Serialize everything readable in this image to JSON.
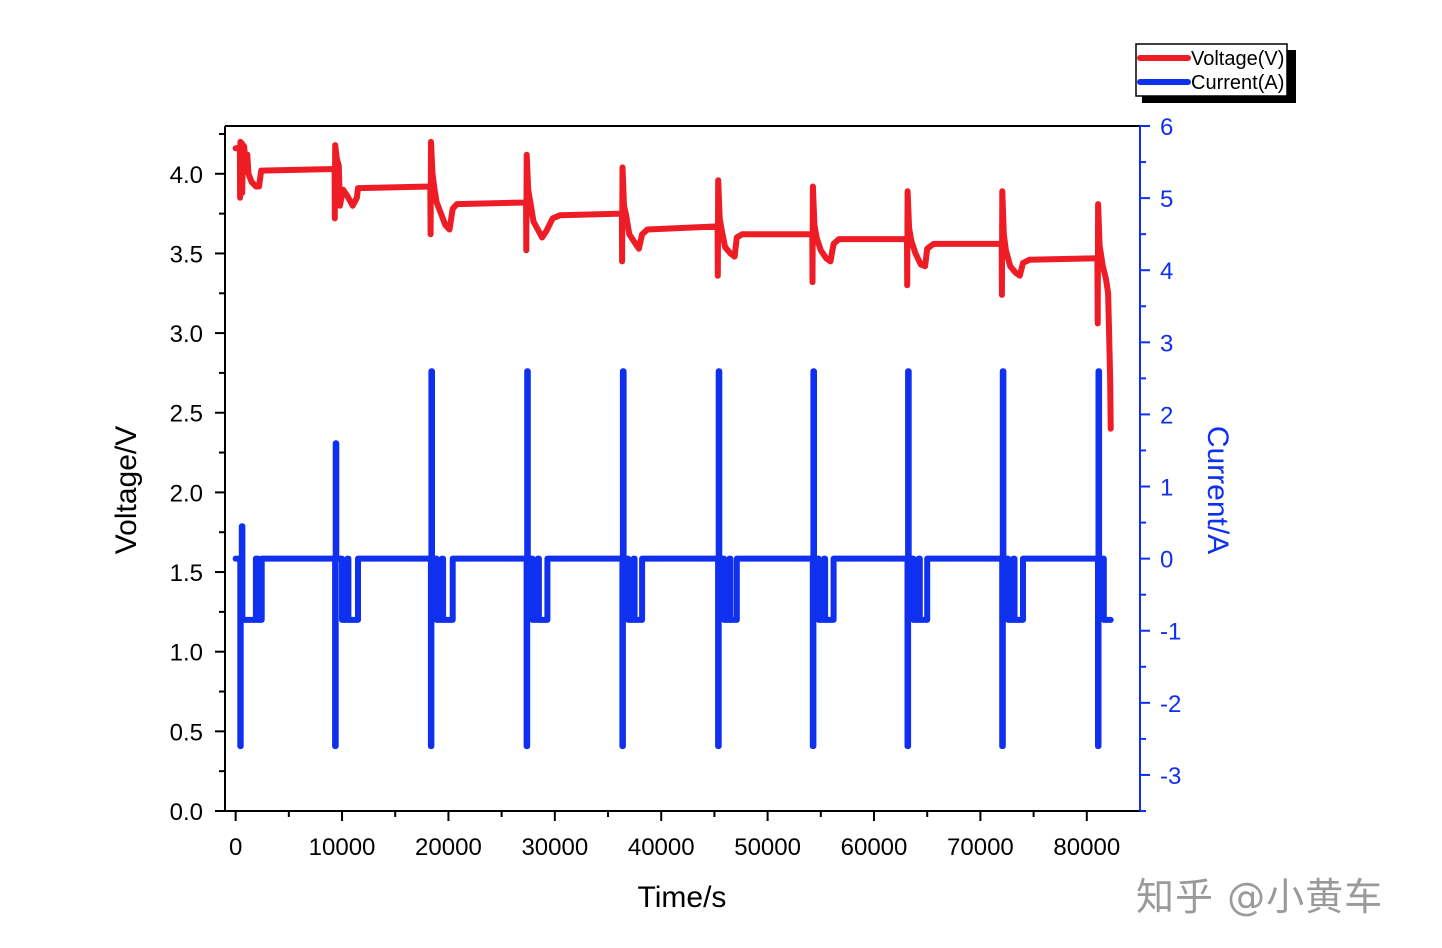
{
  "chart_data": {
    "type": "line",
    "xlabel": "Time/s",
    "ylabel": "Voltage/V",
    "y2label": "Current/A",
    "xlim": [
      -1000,
      85000
    ],
    "ylim": [
      0,
      4.3
    ],
    "y2lim": [
      -3.5,
      6
    ],
    "x_ticks": [
      0,
      10000,
      20000,
      30000,
      40000,
      50000,
      60000,
      70000,
      80000
    ],
    "x_tick_labels": [
      "0",
      "10000",
      "20000",
      "30000",
      "40000",
      "50000",
      "60000",
      "70000",
      "80000"
    ],
    "y_ticks": [
      0,
      0.5,
      1,
      1.5,
      2,
      2.5,
      3,
      3.5,
      4
    ],
    "y_tick_labels": [
      "0.0",
      "0.5",
      "1.0",
      "1.5",
      "2.0",
      "2.5",
      "3.0",
      "3.5",
      "4.0"
    ],
    "y2_ticks": [
      -3,
      -2,
      -1,
      0,
      1,
      2,
      3,
      4,
      5,
      6
    ],
    "y2_tick_labels": [
      "-3",
      "-2",
      "-1",
      "0",
      "1",
      "2",
      "3",
      "4",
      "5",
      "6"
    ],
    "legend_position": "top-right",
    "grid": false,
    "series": [
      {
        "name": "Voltage(V)",
        "axis": "left",
        "color": "#ee1c25",
        "points": [
          [
            0,
            4.16
          ],
          [
            400,
            4.16
          ],
          [
            420,
            3.85
          ],
          [
            450,
            4.2
          ],
          [
            600,
            4.19
          ],
          [
            620,
            3.88
          ],
          [
            700,
            4.18
          ],
          [
            800,
            4.17
          ],
          [
            950,
            4.05
          ],
          [
            1100,
            4.12
          ],
          [
            1200,
            4.0
          ],
          [
            1500,
            3.95
          ],
          [
            1900,
            3.92
          ],
          [
            2200,
            3.92
          ],
          [
            2400,
            4.02
          ],
          [
            9300,
            4.03
          ],
          [
            9320,
            3.72
          ],
          [
            9360,
            4.18
          ],
          [
            9500,
            4.1
          ],
          [
            9700,
            4.05
          ],
          [
            9800,
            3.8
          ],
          [
            10100,
            3.9
          ],
          [
            10500,
            3.86
          ],
          [
            11000,
            3.8
          ],
          [
            11400,
            3.85
          ],
          [
            11500,
            3.91
          ],
          [
            18300,
            3.92
          ],
          [
            18320,
            3.62
          ],
          [
            18360,
            4.2
          ],
          [
            18500,
            4.0
          ],
          [
            18700,
            3.9
          ],
          [
            18900,
            3.82
          ],
          [
            19300,
            3.75
          ],
          [
            19700,
            3.68
          ],
          [
            20100,
            3.65
          ],
          [
            20400,
            3.78
          ],
          [
            20800,
            3.81
          ],
          [
            27300,
            3.82
          ],
          [
            27320,
            3.52
          ],
          [
            27360,
            4.12
          ],
          [
            27500,
            3.9
          ],
          [
            27700,
            3.82
          ],
          [
            28000,
            3.7
          ],
          [
            28400,
            3.65
          ],
          [
            28800,
            3.6
          ],
          [
            29200,
            3.64
          ],
          [
            29800,
            3.72
          ],
          [
            30500,
            3.74
          ],
          [
            36300,
            3.75
          ],
          [
            36320,
            3.45
          ],
          [
            36360,
            4.04
          ],
          [
            36500,
            3.8
          ],
          [
            36700,
            3.74
          ],
          [
            37000,
            3.62
          ],
          [
            37500,
            3.57
          ],
          [
            37900,
            3.53
          ],
          [
            38200,
            3.62
          ],
          [
            38700,
            3.65
          ],
          [
            45300,
            3.67
          ],
          [
            45320,
            3.36
          ],
          [
            45360,
            3.96
          ],
          [
            45500,
            3.72
          ],
          [
            45700,
            3.64
          ],
          [
            46000,
            3.54
          ],
          [
            46500,
            3.5
          ],
          [
            46900,
            3.48
          ],
          [
            47100,
            3.6
          ],
          [
            47600,
            3.62
          ],
          [
            54200,
            3.62
          ],
          [
            54220,
            3.32
          ],
          [
            54260,
            3.92
          ],
          [
            54400,
            3.68
          ],
          [
            54600,
            3.6
          ],
          [
            55000,
            3.52
          ],
          [
            55500,
            3.47
          ],
          [
            55900,
            3.45
          ],
          [
            56200,
            3.56
          ],
          [
            56700,
            3.59
          ],
          [
            63100,
            3.59
          ],
          [
            63120,
            3.3
          ],
          [
            63160,
            3.89
          ],
          [
            63300,
            3.66
          ],
          [
            63500,
            3.58
          ],
          [
            63900,
            3.5
          ],
          [
            64400,
            3.43
          ],
          [
            64800,
            3.42
          ],
          [
            65000,
            3.53
          ],
          [
            65600,
            3.56
          ],
          [
            72000,
            3.56
          ],
          [
            72020,
            3.24
          ],
          [
            72060,
            3.89
          ],
          [
            72200,
            3.62
          ],
          [
            72400,
            3.52
          ],
          [
            72800,
            3.42
          ],
          [
            73300,
            3.38
          ],
          [
            73700,
            3.36
          ],
          [
            74000,
            3.44
          ],
          [
            74600,
            3.46
          ],
          [
            81000,
            3.47
          ],
          [
            81020,
            3.06
          ],
          [
            81060,
            3.81
          ],
          [
            81200,
            3.55
          ],
          [
            81500,
            3.42
          ],
          [
            81800,
            3.34
          ],
          [
            82000,
            3.25
          ],
          [
            82100,
            3.0
          ],
          [
            82200,
            2.7
          ],
          [
            82250,
            2.4
          ]
        ]
      },
      {
        "name": "Current(A)",
        "axis": "right",
        "color": "#1030f0",
        "points": [
          [
            0,
            0
          ],
          [
            440,
            0
          ],
          [
            440,
            -2.6
          ],
          [
            480,
            -2.6
          ],
          [
            480,
            0
          ],
          [
            580,
            0
          ],
          [
            580,
            0.45
          ],
          [
            640,
            0.45
          ],
          [
            640,
            -0.85
          ],
          [
            1900,
            -0.85
          ],
          [
            1900,
            0
          ],
          [
            2100,
            0
          ],
          [
            2100,
            -0.85
          ],
          [
            2450,
            -0.85
          ],
          [
            2450,
            0
          ],
          [
            9350,
            0
          ],
          [
            9350,
            -2.6
          ],
          [
            9400,
            -2.6
          ],
          [
            9400,
            1.6
          ],
          [
            9460,
            1.6
          ],
          [
            9460,
            0
          ],
          [
            10000,
            0
          ],
          [
            10000,
            -0.85
          ],
          [
            10500,
            -0.85
          ],
          [
            10500,
            0
          ],
          [
            10600,
            0
          ],
          [
            10600,
            -0.85
          ],
          [
            11500,
            -0.85
          ],
          [
            11500,
            0
          ],
          [
            18350,
            0
          ],
          [
            18350,
            -2.6
          ],
          [
            18400,
            -2.6
          ],
          [
            18400,
            2.6
          ],
          [
            18460,
            2.6
          ],
          [
            18460,
            0
          ],
          [
            18900,
            0
          ],
          [
            18900,
            -0.85
          ],
          [
            19400,
            -0.85
          ],
          [
            19400,
            0
          ],
          [
            19500,
            0
          ],
          [
            19500,
            -0.85
          ],
          [
            20400,
            -0.85
          ],
          [
            20400,
            0
          ],
          [
            27350,
            0
          ],
          [
            27350,
            -2.6
          ],
          [
            27400,
            -2.6
          ],
          [
            27400,
            2.6
          ],
          [
            27460,
            2.6
          ],
          [
            27460,
            0
          ],
          [
            27900,
            0
          ],
          [
            27900,
            -0.85
          ],
          [
            28400,
            -0.85
          ],
          [
            28400,
            0
          ],
          [
            28500,
            0
          ],
          [
            28500,
            -0.85
          ],
          [
            29300,
            -0.85
          ],
          [
            29300,
            0
          ],
          [
            36350,
            0
          ],
          [
            36350,
            -2.6
          ],
          [
            36400,
            -2.6
          ],
          [
            36400,
            2.6
          ],
          [
            36460,
            2.6
          ],
          [
            36460,
            0
          ],
          [
            36900,
            0
          ],
          [
            36900,
            -0.85
          ],
          [
            37400,
            -0.85
          ],
          [
            37400,
            0
          ],
          [
            37500,
            0
          ],
          [
            37500,
            -0.85
          ],
          [
            38200,
            -0.85
          ],
          [
            38200,
            0
          ],
          [
            45350,
            0
          ],
          [
            45350,
            -2.6
          ],
          [
            45400,
            -2.6
          ],
          [
            45400,
            2.6
          ],
          [
            45460,
            2.6
          ],
          [
            45460,
            0
          ],
          [
            45900,
            0
          ],
          [
            45900,
            -0.85
          ],
          [
            46400,
            -0.85
          ],
          [
            46400,
            0
          ],
          [
            46500,
            0
          ],
          [
            46500,
            -0.85
          ],
          [
            47100,
            -0.85
          ],
          [
            47100,
            0
          ],
          [
            54250,
            0
          ],
          [
            54250,
            -2.6
          ],
          [
            54300,
            -2.6
          ],
          [
            54300,
            2.6
          ],
          [
            54360,
            2.6
          ],
          [
            54360,
            0
          ],
          [
            54800,
            0
          ],
          [
            54800,
            -0.85
          ],
          [
            55300,
            -0.85
          ],
          [
            55300,
            0
          ],
          [
            55400,
            0
          ],
          [
            55400,
            -0.85
          ],
          [
            56200,
            -0.85
          ],
          [
            56200,
            0
          ],
          [
            63150,
            0
          ],
          [
            63150,
            -2.6
          ],
          [
            63200,
            -2.6
          ],
          [
            63200,
            2.6
          ],
          [
            63260,
            2.6
          ],
          [
            63260,
            0
          ],
          [
            63700,
            0
          ],
          [
            63700,
            -0.85
          ],
          [
            64200,
            -0.85
          ],
          [
            64200,
            0
          ],
          [
            64300,
            0
          ],
          [
            64300,
            -0.85
          ],
          [
            65000,
            -0.85
          ],
          [
            65000,
            0
          ],
          [
            72050,
            0
          ],
          [
            72050,
            -2.6
          ],
          [
            72100,
            -2.6
          ],
          [
            72100,
            2.6
          ],
          [
            72160,
            2.6
          ],
          [
            72160,
            0
          ],
          [
            72600,
            0
          ],
          [
            72600,
            -0.85
          ],
          [
            73100,
            -0.85
          ],
          [
            73100,
            0
          ],
          [
            73200,
            0
          ],
          [
            73200,
            -0.85
          ],
          [
            74000,
            -0.85
          ],
          [
            74000,
            0
          ],
          [
            81050,
            0
          ],
          [
            81050,
            -2.6
          ],
          [
            81100,
            -2.6
          ],
          [
            81100,
            2.6
          ],
          [
            81160,
            2.6
          ],
          [
            81160,
            0
          ],
          [
            81600,
            0
          ],
          [
            81600,
            -0.85
          ],
          [
            82250,
            -0.85
          ]
        ]
      }
    ]
  },
  "watermark": "知乎 @小黄车"
}
